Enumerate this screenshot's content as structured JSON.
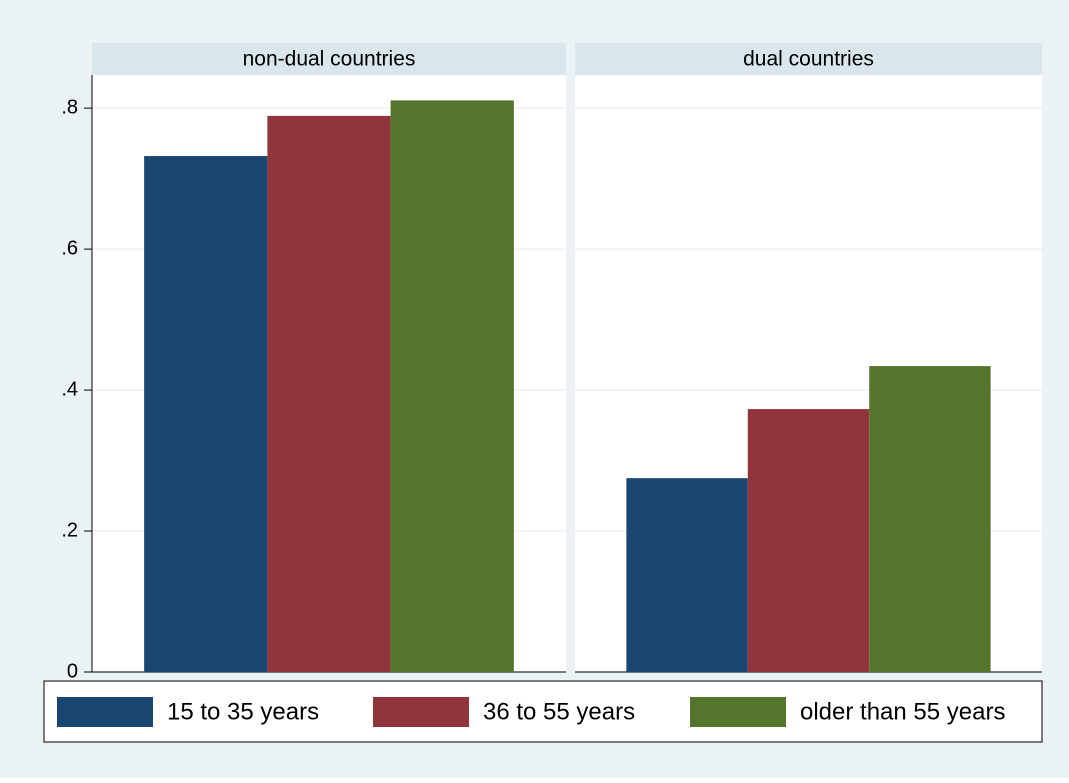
{
  "chart_data": {
    "type": "bar",
    "categories": [
      "non-dual countries",
      "dual countries"
    ],
    "series": [
      {
        "name": "15 to 35 years",
        "color": "#1a476f",
        "values": [
          0.732,
          0.275
        ]
      },
      {
        "name": "36 to 55 years",
        "color": "#90353b",
        "values": [
          0.789,
          0.373
        ]
      },
      {
        "name": "older than 55 years",
        "color": "#55752f",
        "values": [
          0.811,
          0.434
        ]
      }
    ],
    "ylim": [
      0,
      0.847
    ],
    "yticks": [
      0,
      {
        "value": 0.2,
        "label": ".2"
      },
      {
        "value": 0.4,
        "label": ".4"
      },
      {
        "value": 0.6,
        "label": ".6"
      },
      {
        "value": 0.8,
        "label": ".8"
      }
    ],
    "grid": true,
    "legend": "bottom"
  }
}
